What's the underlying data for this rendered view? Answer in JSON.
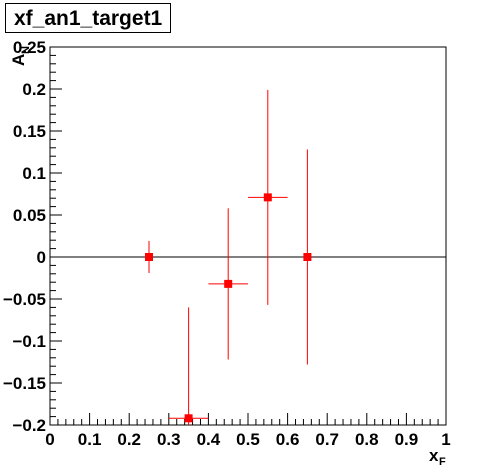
{
  "chart_data": {
    "type": "scatter",
    "title": "xf_an1_target1",
    "xlabel": "x",
    "xlabel_sub": "F",
    "ylabel": "A",
    "ylabel_sub": "N",
    "xlim": [
      0,
      1
    ],
    "ylim": [
      -0.2,
      0.25
    ],
    "xticks": [
      "0",
      "0.1",
      "0.2",
      "0.3",
      "0.4",
      "0.5",
      "0.6",
      "0.7",
      "0.8",
      "0.9",
      "1"
    ],
    "yticks": [
      "0.25",
      "0.2",
      "0.15",
      "0.1",
      "0.05",
      "0",
      "−0.05",
      "−0.1",
      "−0.15",
      "−0.2"
    ],
    "ytick_values": [
      0.25,
      0.2,
      0.15,
      0.1,
      0.05,
      0,
      -0.05,
      -0.1,
      -0.15,
      -0.2
    ],
    "grid": false,
    "zero_line": true,
    "marker_color": "#ff0000",
    "points": [
      {
        "x": 0.25,
        "y": 0.0,
        "xerr": 0.0,
        "yerr": 0.019
      },
      {
        "x": 0.35,
        "y": -0.192,
        "xerr": 0.05,
        "yerr": 0.132
      },
      {
        "x": 0.45,
        "y": -0.032,
        "xerr": 0.05,
        "yerr": 0.09
      },
      {
        "x": 0.55,
        "y": 0.071,
        "xerr": 0.05,
        "yerr": 0.128
      },
      {
        "x": 0.65,
        "y": 0.0,
        "xerr": 0.0,
        "yerr": 0.128
      }
    ]
  }
}
